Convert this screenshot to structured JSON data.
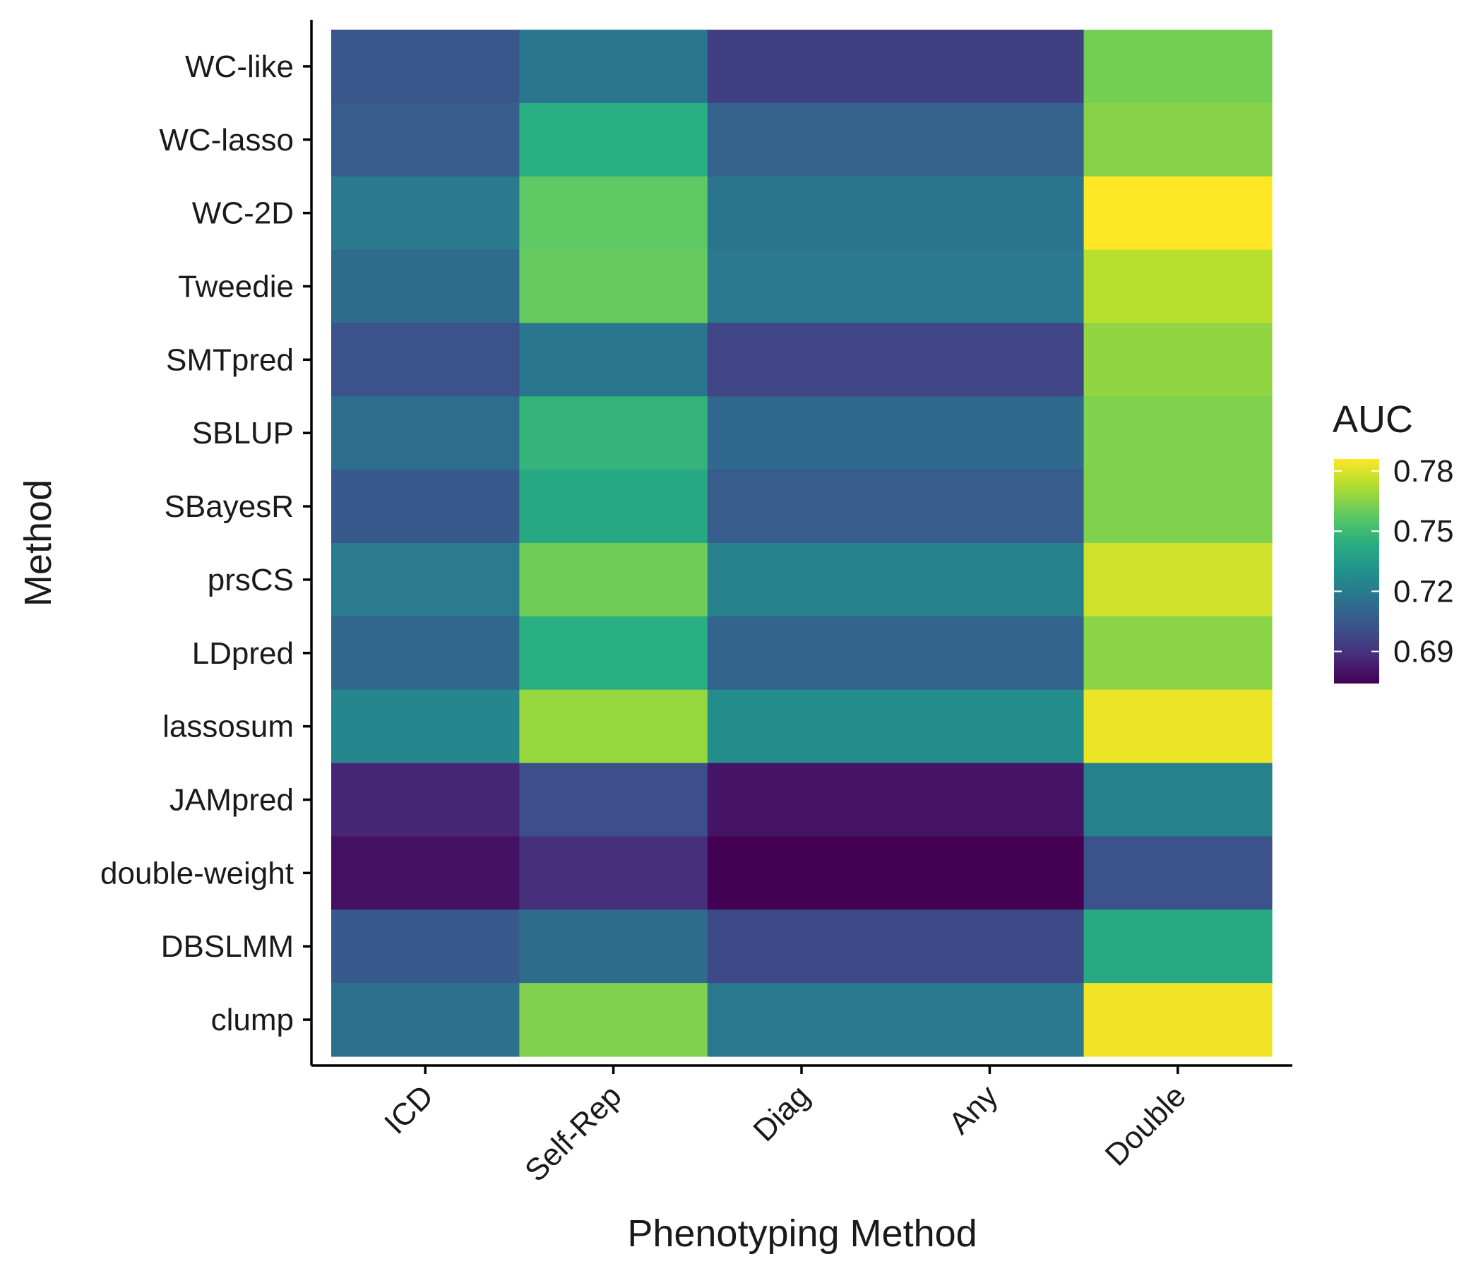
{
  "chart_data": {
    "type": "heatmap",
    "title": "",
    "xlabel": "Phenotyping Method",
    "ylabel": "Method",
    "x": [
      "ICD",
      "Self-Rep",
      "Diag",
      "Any",
      "Double"
    ],
    "y": [
      "WC-like",
      "WC-lasso",
      "WC-2D",
      "Tweedie",
      "SMTpred",
      "SBLUP",
      "SBayesR",
      "prsCS",
      "LDpred",
      "lassosum",
      "JAMpred",
      "double-weight",
      "DBSLMM",
      "clump"
    ],
    "values": [
      [
        0.704,
        0.718,
        0.695,
        0.695,
        0.762
      ],
      [
        0.707,
        0.744,
        0.709,
        0.709,
        0.765
      ],
      [
        0.719,
        0.758,
        0.717,
        0.717,
        0.786
      ],
      [
        0.713,
        0.759,
        0.719,
        0.719,
        0.774
      ],
      [
        0.702,
        0.718,
        0.697,
        0.697,
        0.767
      ],
      [
        0.714,
        0.747,
        0.712,
        0.712,
        0.764
      ],
      [
        0.705,
        0.741,
        0.707,
        0.707,
        0.764
      ],
      [
        0.72,
        0.761,
        0.723,
        0.723,
        0.778
      ],
      [
        0.711,
        0.744,
        0.71,
        0.71,
        0.766
      ],
      [
        0.725,
        0.768,
        0.728,
        0.728,
        0.783
      ],
      [
        0.686,
        0.701,
        0.68,
        0.68,
        0.723
      ],
      [
        0.679,
        0.689,
        0.674,
        0.674,
        0.702
      ],
      [
        0.705,
        0.713,
        0.699,
        0.699,
        0.742
      ],
      [
        0.715,
        0.764,
        0.719,
        0.719,
        0.784
      ]
    ],
    "colorscale": "viridis",
    "legend": {
      "title": "AUC",
      "position": "right",
      "min": 0.674,
      "max": 0.786,
      "ticks": [
        0.69,
        0.72,
        0.75,
        0.78
      ],
      "tick_labels": [
        "0.69",
        "0.72",
        "0.75",
        "0.78"
      ]
    },
    "grid": false
  }
}
